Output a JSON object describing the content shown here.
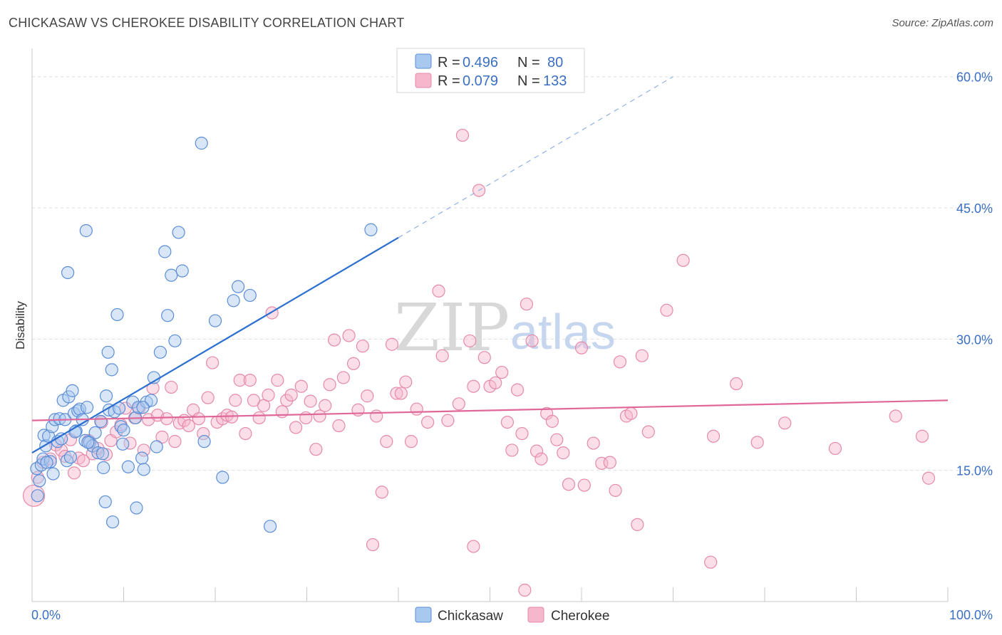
{
  "header": {
    "title": "CHICKASAW VS CHEROKEE DISABILITY CORRELATION CHART",
    "source": "Source: ZipAtlas.com"
  },
  "legend": {
    "rows": [
      {
        "r_label": "R = ",
        "r_value": "0.496",
        "n_label": "N = ",
        "n_value": "80"
      },
      {
        "r_label": "R = ",
        "r_value": "0.079",
        "n_label": "N = ",
        "n_value": "133"
      }
    ]
  },
  "bottom_legend": [
    "Chickasaw",
    "Cherokee"
  ],
  "watermark": {
    "zip": "ZIP",
    "atlas": "atlas"
  },
  "colors": {
    "chickasaw_fill": "#a9c8f0",
    "chickasaw_stroke": "#5b8ed6",
    "chickasaw_line": "#2a6fd0",
    "cherokee_fill": "#f6b6cb",
    "cherokee_stroke": "#e58aa8",
    "cherokee_line": "#e0679a",
    "tick_text": "#3a6fc4",
    "grid": "#dddddd"
  },
  "chart_data": {
    "type": "scatter",
    "title": "CHICKASAW VS CHEROKEE DISABILITY CORRELATION CHART",
    "xlabel": "",
    "ylabel": "Disability",
    "xlim": [
      0,
      100
    ],
    "ylim": [
      0,
      62.5
    ],
    "x_tick_labels": [
      "0.0%",
      "100.0%"
    ],
    "y_ticks": [
      15,
      30,
      45,
      60
    ],
    "y_tick_labels": [
      "15.0%",
      "30.0%",
      "45.0%",
      "60.0%"
    ],
    "grid": true,
    "legend_position": "top-center",
    "series": [
      {
        "name": "Chickasaw",
        "R": 0.496,
        "N": 80,
        "trend": {
          "x": [
            0,
            40
          ],
          "y": [
            17.0,
            41.6
          ],
          "dashed_extension_to": [
            70,
            60.0
          ]
        },
        "points": [
          [
            0.5,
            15.2
          ],
          [
            0.8,
            13.8
          ],
          [
            1.0,
            15.6
          ],
          [
            1.2,
            16.3
          ],
          [
            1.3,
            19.0
          ],
          [
            1.5,
            17.8
          ],
          [
            1.8,
            18.9
          ],
          [
            2.0,
            16.0
          ],
          [
            2.2,
            20.0
          ],
          [
            2.3,
            14.6
          ],
          [
            2.5,
            20.8
          ],
          [
            2.8,
            18.3
          ],
          [
            3.0,
            20.9
          ],
          [
            3.2,
            18.6
          ],
          [
            3.4,
            23.0
          ],
          [
            3.6,
            20.8
          ],
          [
            3.8,
            16.1
          ],
          [
            4.0,
            23.4
          ],
          [
            4.2,
            16.5
          ],
          [
            4.4,
            24.1
          ],
          [
            4.6,
            21.5
          ],
          [
            4.8,
            19.5
          ],
          [
            5.0,
            21.8
          ],
          [
            5.2,
            22.0
          ],
          [
            5.5,
            20.8
          ],
          [
            5.8,
            18.4
          ],
          [
            6.0,
            22.2
          ],
          [
            6.3,
            18.2
          ],
          [
            6.6,
            17.8
          ],
          [
            6.9,
            19.3
          ],
          [
            7.2,
            17.0
          ],
          [
            7.5,
            20.6
          ],
          [
            7.8,
            15.3
          ],
          [
            8.1,
            23.5
          ],
          [
            8.4,
            21.9
          ],
          [
            8.7,
            26.5
          ],
          [
            9.0,
            21.7
          ],
          [
            9.3,
            32.8
          ],
          [
            9.7,
            20.0
          ],
          [
            10.0,
            19.6
          ],
          [
            10.5,
            15.4
          ],
          [
            11.0,
            22.8
          ],
          [
            11.3,
            21.0
          ],
          [
            11.6,
            22.2
          ],
          [
            12.0,
            16.4
          ],
          [
            12.2,
            15.1
          ],
          [
            12.5,
            22.8
          ],
          [
            13.0,
            23.0
          ],
          [
            13.3,
            25.6
          ],
          [
            13.6,
            17.7
          ],
          [
            14.0,
            28.5
          ],
          [
            14.5,
            40.0
          ],
          [
            14.8,
            32.7
          ],
          [
            15.2,
            37.3
          ],
          [
            15.6,
            29.8
          ],
          [
            16.0,
            42.2
          ],
          [
            16.4,
            37.8
          ],
          [
            18.5,
            52.4
          ],
          [
            18.8,
            18.3
          ],
          [
            20.0,
            32.1
          ],
          [
            20.8,
            14.2
          ],
          [
            22.0,
            34.4
          ],
          [
            22.5,
            36.0
          ],
          [
            23.8,
            35.0
          ],
          [
            26.0,
            8.6
          ],
          [
            37.0,
            42.5
          ],
          [
            5.9,
            42.4
          ],
          [
            3.9,
            37.6
          ],
          [
            8.3,
            28.5
          ],
          [
            12.1,
            22.2
          ],
          [
            9.5,
            22.1
          ],
          [
            6.1,
            18.2
          ],
          [
            7.7,
            16.9
          ],
          [
            1.6,
            15.9
          ],
          [
            0.6,
            12.1
          ],
          [
            11.4,
            10.7
          ],
          [
            8.8,
            9.1
          ],
          [
            8.0,
            11.4
          ],
          [
            9.9,
            18.0
          ],
          [
            4.7,
            19.4
          ]
        ]
      },
      {
        "name": "Cherokee",
        "R": 0.079,
        "N": 133,
        "trend": {
          "x": [
            0,
            100
          ],
          "y": [
            20.7,
            23.0
          ]
        },
        "points": [
          [
            0.2,
            12.1
          ],
          [
            0.6,
            14.2
          ],
          [
            1.2,
            15.9
          ],
          [
            2.0,
            16.3
          ],
          [
            2.6,
            17.9
          ],
          [
            3.2,
            17.3
          ],
          [
            3.6,
            16.6
          ],
          [
            4.2,
            18.5
          ],
          [
            4.6,
            14.7
          ],
          [
            5.1,
            16.4
          ],
          [
            5.6,
            16.1
          ],
          [
            6.2,
            18.4
          ],
          [
            6.6,
            16.9
          ],
          [
            7.2,
            17.5
          ],
          [
            7.6,
            20.5
          ],
          [
            8.1,
            16.8
          ],
          [
            8.6,
            18.4
          ],
          [
            9.2,
            19.4
          ],
          [
            9.7,
            20.2
          ],
          [
            10.2,
            22.1
          ],
          [
            10.7,
            18.1
          ],
          [
            11.2,
            21.0
          ],
          [
            11.7,
            22.1
          ],
          [
            12.2,
            17.3
          ],
          [
            12.7,
            20.8
          ],
          [
            13.2,
            24.4
          ],
          [
            13.7,
            21.3
          ],
          [
            14.2,
            18.8
          ],
          [
            14.7,
            20.9
          ],
          [
            15.2,
            24.5
          ],
          [
            15.6,
            18.3
          ],
          [
            16.1,
            20.4
          ],
          [
            16.6,
            20.7
          ],
          [
            17.1,
            20.1
          ],
          [
            17.6,
            21.9
          ],
          [
            18.2,
            20.9
          ],
          [
            18.7,
            19.2
          ],
          [
            19.2,
            23.3
          ],
          [
            19.7,
            27.3
          ],
          [
            20.2,
            20.5
          ],
          [
            20.8,
            20.9
          ],
          [
            21.3,
            21.3
          ],
          [
            21.8,
            21.1
          ],
          [
            22.2,
            23.0
          ],
          [
            22.7,
            25.3
          ],
          [
            23.3,
            19.2
          ],
          [
            23.8,
            25.3
          ],
          [
            24.2,
            23.0
          ],
          [
            24.8,
            21.0
          ],
          [
            25.3,
            22.4
          ],
          [
            25.8,
            23.6
          ],
          [
            26.2,
            33.0
          ],
          [
            26.8,
            25.3
          ],
          [
            27.3,
            21.7
          ],
          [
            27.8,
            23.0
          ],
          [
            28.3,
            23.6
          ],
          [
            28.8,
            19.9
          ],
          [
            29.4,
            24.6
          ],
          [
            29.9,
            21.0
          ],
          [
            30.4,
            22.9
          ],
          [
            31.0,
            17.4
          ],
          [
            31.4,
            21.2
          ],
          [
            32.0,
            22.4
          ],
          [
            32.5,
            24.8
          ],
          [
            33.0,
            29.9
          ],
          [
            33.5,
            20.1
          ],
          [
            34.0,
            25.6
          ],
          [
            34.6,
            30.4
          ],
          [
            35.1,
            27.2
          ],
          [
            35.6,
            21.9
          ],
          [
            36.1,
            29.2
          ],
          [
            36.6,
            23.5
          ],
          [
            37.2,
            6.5
          ],
          [
            37.6,
            21.2
          ],
          [
            38.2,
            12.5
          ],
          [
            38.7,
            18.3
          ],
          [
            39.3,
            29.4
          ],
          [
            39.8,
            23.8
          ],
          [
            40.3,
            23.8
          ],
          [
            40.8,
            25.1
          ],
          [
            41.4,
            18.3
          ],
          [
            42.0,
            22.0
          ],
          [
            44.4,
            35.5
          ],
          [
            44.8,
            28.1
          ],
          [
            45.4,
            20.7
          ],
          [
            46.6,
            22.6
          ],
          [
            47.0,
            53.3
          ],
          [
            47.8,
            29.8
          ],
          [
            48.2,
            24.6
          ],
          [
            48.8,
            47.0
          ],
          [
            49.4,
            27.9
          ],
          [
            50.0,
            24.6
          ],
          [
            50.6,
            25.0
          ],
          [
            51.3,
            26.2
          ],
          [
            51.9,
            20.5
          ],
          [
            52.4,
            17.3
          ],
          [
            53.0,
            24.2
          ],
          [
            53.5,
            19.2
          ],
          [
            54.0,
            34.0
          ],
          [
            54.6,
            29.8
          ],
          [
            55.1,
            17.2
          ],
          [
            55.6,
            16.3
          ],
          [
            56.2,
            21.5
          ],
          [
            56.8,
            20.6
          ],
          [
            57.3,
            18.5
          ],
          [
            58.0,
            17.0
          ],
          [
            58.6,
            13.4
          ],
          [
            60.0,
            29.0
          ],
          [
            61.3,
            18.1
          ],
          [
            62.2,
            15.8
          ],
          [
            63.1,
            15.9
          ],
          [
            63.7,
            12.7
          ],
          [
            64.2,
            27.4
          ],
          [
            64.9,
            21.2
          ],
          [
            65.4,
            21.5
          ],
          [
            66.1,
            8.8
          ],
          [
            66.6,
            28.1
          ],
          [
            67.3,
            19.4
          ],
          [
            69.3,
            33.3
          ],
          [
            71.1,
            39.0
          ],
          [
            74.1,
            4.5
          ],
          [
            74.4,
            18.9
          ],
          [
            76.9,
            24.9
          ],
          [
            79.2,
            18.2
          ],
          [
            82.2,
            20.4
          ],
          [
            87.7,
            17.5
          ],
          [
            94.3,
            21.2
          ],
          [
            97.2,
            18.9
          ],
          [
            97.9,
            14.1
          ],
          [
            60.3,
            13.3
          ],
          [
            48.2,
            6.3
          ],
          [
            53.8,
            1.3
          ],
          [
            43.2,
            20.5
          ]
        ]
      }
    ]
  }
}
